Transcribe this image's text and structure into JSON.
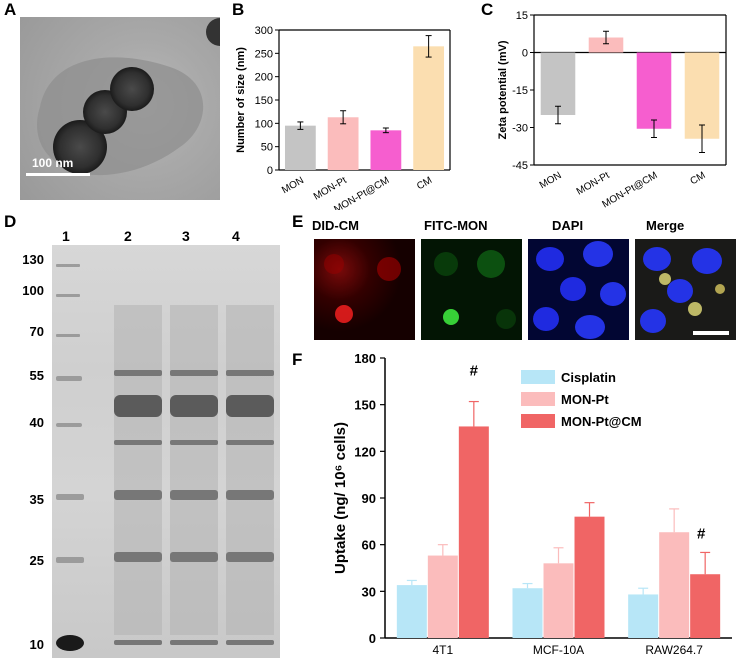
{
  "panels": {
    "a": {
      "letter": "A",
      "scale_label": "100 nm"
    },
    "b": {
      "letter": "B"
    },
    "c": {
      "letter": "C"
    },
    "d": {
      "letter": "D",
      "lane_labels": [
        "1",
        "2",
        "3",
        "4"
      ],
      "mw_labels": [
        "130",
        "100",
        "70",
        "55",
        "40",
        "35",
        "25",
        "10"
      ]
    },
    "e": {
      "letter": "E",
      "channels": [
        "DID-CM",
        "FITC-MON",
        "DAPI",
        "Merge"
      ]
    },
    "f": {
      "letter": "F"
    }
  },
  "colors": {
    "MON": "#c4c4c4",
    "MON-Pt": "#fbbcbc",
    "MON-Pt@CM": "#f65ecf",
    "CM": "#fbdeb0",
    "Cisplatin": "#b7e6f7",
    "MON-Pt_F": "#fbbcbc",
    "MON-Pt@CM_F": "#f06565",
    "dapi": "#1a2bd6",
    "fitc": "#22c83a",
    "did": "#d01919"
  },
  "chart_data": [
    {
      "type": "bar",
      "categories": [
        "MON",
        "MON-Pt",
        "MON-Pt@CM",
        "CM"
      ],
      "values": [
        95,
        113,
        85,
        265
      ],
      "errors": [
        8,
        14,
        5,
        23
      ],
      "ylabel": "Number of size (nm)",
      "ylim": [
        0,
        300
      ],
      "yticks": [
        "0",
        "50",
        "100",
        "150",
        "200",
        "250",
        "300"
      ]
    },
    {
      "type": "bar",
      "categories": [
        "MON",
        "MON-Pt",
        "MON-Pt@CM",
        "CM"
      ],
      "values": [
        -25,
        6,
        -30.5,
        -34.5
      ],
      "errors": [
        3.5,
        2.5,
        3.5,
        5.5
      ],
      "ylabel": "Zeta potential (mV)",
      "ylim": [
        -45,
        15
      ],
      "yticks": [
        "-45",
        "-30",
        "-15",
        "0",
        "15"
      ]
    },
    {
      "type": "bar",
      "categories": [
        "4T1",
        "MCF-10A",
        "RAW264.7"
      ],
      "series": [
        {
          "name": "Cisplatin",
          "values": [
            34,
            32,
            28
          ],
          "errors": [
            3,
            3,
            4
          ]
        },
        {
          "name": "MON-Pt",
          "values": [
            53,
            48,
            68
          ],
          "errors": [
            7,
            10,
            15
          ]
        },
        {
          "name": "MON-Pt@CM",
          "values": [
            136,
            78,
            41
          ],
          "errors": [
            16,
            9,
            14
          ]
        }
      ],
      "annotations": [
        "#",
        "#"
      ],
      "ylabel": "Uptake (ng/ 10⁶ cells)",
      "ylim": [
        0,
        180
      ],
      "yticks": [
        "0",
        "30",
        "60",
        "90",
        "120",
        "150",
        "180"
      ]
    }
  ]
}
